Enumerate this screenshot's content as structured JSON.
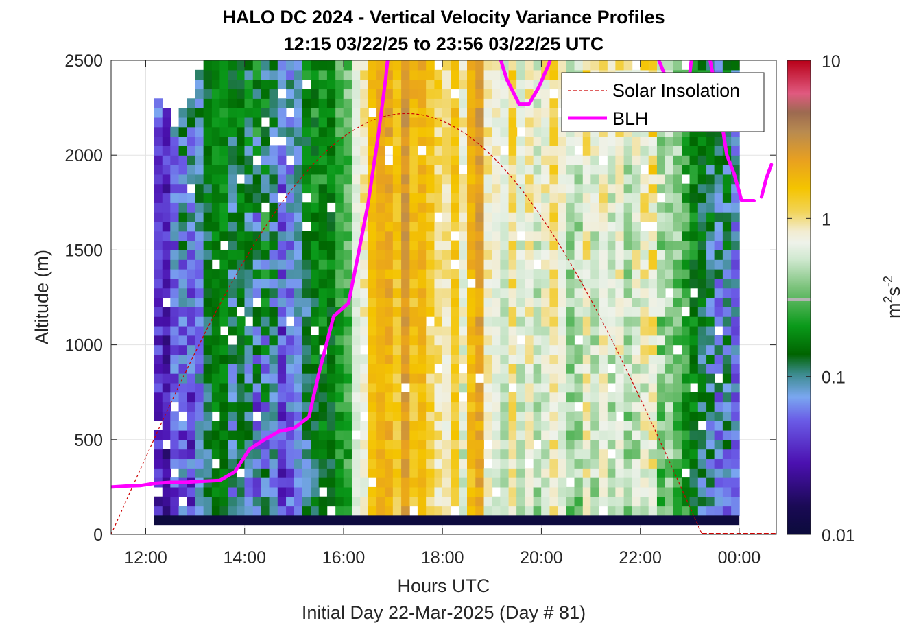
{
  "chart_data": {
    "type": "heatmap",
    "title": "HALO DC 2024 - Vertical Velocity Variance Profiles",
    "subtitle": "12:15 03/22/25 to 23:56 03/22/25  UTC",
    "xlabel": "Hours UTC",
    "xlabel2": "Initial Day 22-Mar-2025 (Day # 81)",
    "ylabel": "Altitude (m)",
    "colorbar_label": "m²s⁻²",
    "colorbar_label_base": "m",
    "colorbar_label_sup1": "2",
    "colorbar_label_mid": "s",
    "colorbar_label_sup2": "-2",
    "xlim": [
      11.3,
      24.75
    ],
    "ylim": [
      0,
      2500
    ],
    "clim_log10": [
      -2,
      1
    ],
    "color_scale": "log",
    "x_ticks": [
      12,
      14,
      16,
      18,
      20,
      22,
      24
    ],
    "x_tick_labels": [
      "12:00",
      "14:00",
      "16:00",
      "18:00",
      "20:00",
      "22:00",
      "00:00"
    ],
    "y_ticks": [
      0,
      500,
      1000,
      1500,
      2000,
      2500
    ],
    "y_tick_labels": [
      "0",
      "500",
      "1000",
      "1500",
      "2000",
      "2500"
    ],
    "colorbar_ticks_log10": [
      -2,
      -1,
      0,
      1
    ],
    "colorbar_tick_labels": [
      "0.01",
      "0.1",
      "1",
      "10"
    ],
    "grid": true,
    "legend_position": "top-right",
    "legend": [
      {
        "name": "Solar Insolation",
        "color": "#cc0000",
        "style": "dashed"
      },
      {
        "name": "BLH",
        "color": "#ff00ff",
        "style": "solid"
      }
    ],
    "heatmap": {
      "time_start": 12.25,
      "time_step": 0.1667,
      "altitude_start": 100,
      "altitude_step": 50,
      "n_altitudes": 48,
      "columns": [
        {
          "t": 12.25,
          "top": 2300,
          "low": -1.7,
          "high": -1.1
        },
        {
          "t": 12.42,
          "top": 2250,
          "low": -1.8,
          "high": -1.2
        },
        {
          "t": 12.58,
          "top": 2150,
          "low": -1.6,
          "high": -0.9
        },
        {
          "t": 12.75,
          "top": 2250,
          "low": -1.6,
          "high": -0.7
        },
        {
          "t": 12.92,
          "top": 2300,
          "low": -1.7,
          "high": -0.8
        },
        {
          "t": 13.08,
          "top": 2450,
          "low": -1.4,
          "high": -0.8
        },
        {
          "t": 13.25,
          "top": 2500,
          "low": -1.1,
          "high": -0.7
        },
        {
          "t": 13.42,
          "top": 2500,
          "low": -0.9,
          "high": -0.6
        },
        {
          "t": 13.58,
          "top": 2500,
          "low": -0.9,
          "high": -0.6
        },
        {
          "t": 13.75,
          "top": 2500,
          "low": -1.3,
          "high": -0.6
        },
        {
          "t": 13.92,
          "top": 2500,
          "low": -1.1,
          "high": -0.6
        },
        {
          "t": 14.08,
          "top": 2500,
          "low": -1.3,
          "high": -0.6
        },
        {
          "t": 14.25,
          "top": 2500,
          "low": -1.6,
          "high": -0.5
        },
        {
          "t": 14.42,
          "top": 2500,
          "low": -1.5,
          "high": -0.4
        },
        {
          "t": 14.58,
          "top": 2500,
          "low": -1.4,
          "high": -0.6
        },
        {
          "t": 14.75,
          "top": 2500,
          "low": -1.7,
          "high": -0.9
        },
        {
          "t": 14.92,
          "top": 2500,
          "low": -1.5,
          "high": -0.9
        },
        {
          "t": 15.08,
          "top": 2500,
          "low": -1.3,
          "high": -0.9
        },
        {
          "t": 15.25,
          "top": 2500,
          "low": -1.2,
          "high": -0.6
        },
        {
          "t": 15.42,
          "top": 2500,
          "low": -1.1,
          "high": -0.5
        },
        {
          "t": 15.58,
          "top": 2500,
          "low": -1.0,
          "high": -0.5
        },
        {
          "t": 15.75,
          "top": 2500,
          "low": -1.0,
          "high": -0.6
        },
        {
          "t": 15.92,
          "top": 2500,
          "low": -0.8,
          "high": -0.4
        },
        {
          "t": 16.08,
          "top": 2500,
          "low": -0.8,
          "high": -0.3
        },
        {
          "t": 16.25,
          "top": 2500,
          "low": -0.3,
          "high": -0.1
        },
        {
          "t": 16.42,
          "top": 2500,
          "low": -0.3,
          "high": 0.1
        },
        {
          "t": 16.58,
          "top": 2500,
          "low": 0.1,
          "high": 0.3
        },
        {
          "t": 16.75,
          "top": 2500,
          "low": 0.2,
          "high": 0.4
        },
        {
          "t": 16.92,
          "top": 2500,
          "low": 0.1,
          "high": 0.5
        },
        {
          "t": 17.08,
          "top": 2500,
          "low": 0.0,
          "high": 0.3
        },
        {
          "t": 17.25,
          "top": 2500,
          "low": 0.3,
          "high": 0.55
        },
        {
          "t": 17.42,
          "top": 2500,
          "low": 0.0,
          "high": 0.4
        },
        {
          "t": 17.58,
          "top": 2500,
          "low": 0.1,
          "high": 0.4
        },
        {
          "t": 17.75,
          "top": 2500,
          "low": -0.1,
          "high": 0.3
        },
        {
          "t": 17.92,
          "top": 2500,
          "low": -0.2,
          "high": 0.2
        },
        {
          "t": 18.08,
          "top": 2500,
          "low": -0.2,
          "high": 0.1
        },
        {
          "t": 18.25,
          "top": 2500,
          "low": 0.0,
          "high": 0.3
        },
        {
          "t": 18.42,
          "top": 2500,
          "low": -0.4,
          "high": 0.1
        },
        {
          "t": 18.58,
          "top": 2500,
          "low": 0.1,
          "high": 0.4
        },
        {
          "t": 18.75,
          "top": 2500,
          "low": 0.2,
          "high": 0.55
        },
        {
          "t": 18.92,
          "top": 2500,
          "low": -0.3,
          "high": 0.1
        },
        {
          "t": 19.08,
          "top": 2500,
          "low": -0.3,
          "high": 0.0
        },
        {
          "t": 19.25,
          "top": 2500,
          "low": -0.4,
          "high": -0.1
        },
        {
          "t": 19.42,
          "top": 2500,
          "low": -0.2,
          "high": 0.2
        },
        {
          "t": 19.58,
          "top": 2500,
          "low": -0.4,
          "high": -0.1
        },
        {
          "t": 19.75,
          "top": 2500,
          "low": -0.3,
          "high": 0.1
        },
        {
          "t": 19.92,
          "top": 2500,
          "low": -0.5,
          "high": 0.0
        },
        {
          "t": 20.08,
          "top": 2500,
          "low": -0.4,
          "high": 0.1
        },
        {
          "t": 20.25,
          "top": 2500,
          "low": -0.2,
          "high": 0.2
        },
        {
          "t": 20.42,
          "top": 2500,
          "low": -0.3,
          "high": 0.0
        },
        {
          "t": 20.58,
          "top": 2500,
          "low": -0.6,
          "high": -0.1
        },
        {
          "t": 20.75,
          "top": 2500,
          "low": -0.6,
          "high": 0.0
        },
        {
          "t": 20.92,
          "top": 2500,
          "low": -0.4,
          "high": 0.2
        },
        {
          "t": 21.08,
          "top": 2500,
          "low": -0.5,
          "high": 0.0
        },
        {
          "t": 21.25,
          "top": 2500,
          "low": -0.3,
          "high": 0.1
        },
        {
          "t": 21.42,
          "top": 2500,
          "low": -0.5,
          "high": 0.0
        },
        {
          "t": 21.58,
          "top": 2500,
          "low": -0.4,
          "high": 0.1
        },
        {
          "t": 21.75,
          "top": 2500,
          "low": -0.6,
          "high": 0.0
        },
        {
          "t": 21.92,
          "top": 2500,
          "low": -0.5,
          "high": 0.1
        },
        {
          "t": 22.08,
          "top": 2500,
          "low": -0.5,
          "high": 0.2
        },
        {
          "t": 22.25,
          "top": 2500,
          "low": -0.4,
          "high": 0.3
        },
        {
          "t": 22.42,
          "top": 2500,
          "low": -0.7,
          "high": 0.0
        },
        {
          "t": 22.58,
          "top": 2500,
          "low": -0.6,
          "high": -0.1
        },
        {
          "t": 22.75,
          "top": 2500,
          "low": -0.7,
          "high": -0.2
        },
        {
          "t": 22.92,
          "top": 2500,
          "low": -0.9,
          "high": -0.3
        },
        {
          "t": 23.08,
          "top": 2500,
          "low": -1.0,
          "high": -0.5
        },
        {
          "t": 23.25,
          "top": 2500,
          "low": -1.2,
          "high": -0.6
        },
        {
          "t": 23.42,
          "top": 2500,
          "low": -1.3,
          "high": -0.6
        },
        {
          "t": 23.58,
          "top": 2500,
          "low": -1.5,
          "high": -0.7
        },
        {
          "t": 23.75,
          "top": 2500,
          "low": -1.4,
          "high": -0.6
        },
        {
          "t": 23.92,
          "top": 2500,
          "low": -1.5,
          "high": -0.8
        }
      ]
    },
    "series": [
      {
        "name": "BLH",
        "segments": [
          {
            "x": [
              11.3,
              11.6,
              11.9,
              12.2,
              12.5,
              12.8,
              13.1,
              13.5,
              13.8,
              14.1,
              14.4,
              14.7,
              15.0,
              15.3,
              15.5,
              15.8,
              16.1,
              16.3,
              16.5,
              16.7,
              16.85,
              16.95
            ],
            "y": [
              250,
              255,
              258,
              270,
              275,
              275,
              280,
              285,
              330,
              450,
              500,
              545,
              560,
              620,
              850,
              1150,
              1220,
              1480,
              1750,
              2100,
              2400,
              2650
            ]
          },
          {
            "x": [
              19.0,
              19.3,
              19.55,
              19.75,
              19.95,
              20.15,
              20.3,
              20.45
            ],
            "y": [
              2650,
              2400,
              2270,
              2270,
              2360,
              2480,
              2600,
              2650
            ]
          },
          {
            "x": [
              22.1,
              22.3,
              22.5,
              22.7,
              22.95,
              23.1
            ],
            "y": [
              2650,
              2550,
              2420,
              2300,
              2320,
              2650
            ]
          },
          {
            "x": [
              23.3,
              23.45,
              23.6,
              23.75,
              23.9,
              24.05,
              24.3
            ],
            "y": [
              2650,
              2450,
              2250,
              2000,
              1900,
              1760,
              1760
            ]
          },
          {
            "x": [
              24.45,
              24.55,
              24.65
            ],
            "y": [
              1780,
              1880,
              1950
            ]
          }
        ]
      },
      {
        "name": "Solar Insolation",
        "sunrise": 11.3,
        "sunset": 23.25,
        "peak_time": 17.28,
        "peak_altitude": 2220,
        "night_altitude": 0
      }
    ]
  }
}
